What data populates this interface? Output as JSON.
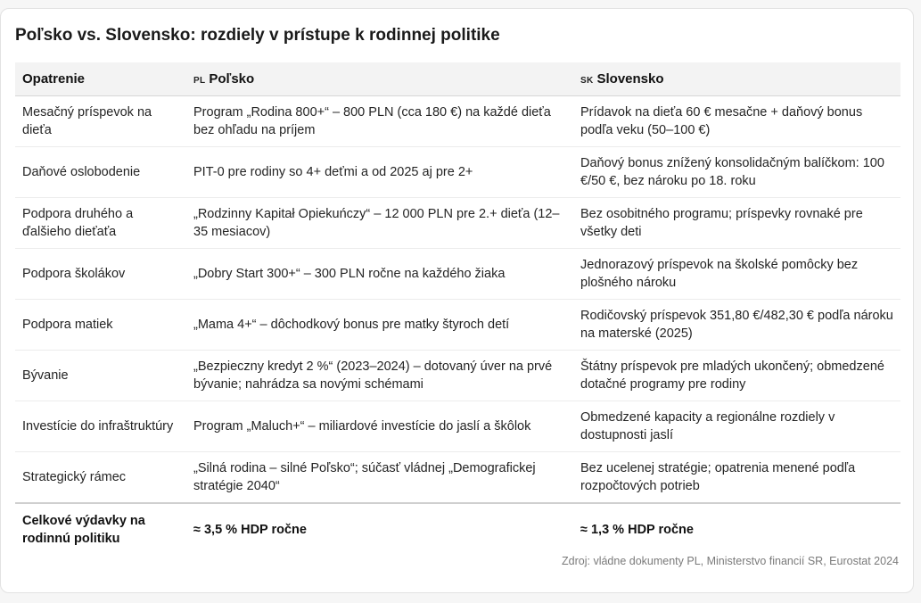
{
  "title": "Poľsko vs. Slovensko: rozdiely v prístupe k rodinnej politike",
  "header": {
    "col1": "Opatrenie",
    "col2_flag": "PL",
    "col2": "Poľsko",
    "col3_flag": "SK",
    "col3": "Slovensko"
  },
  "rows": [
    {
      "measure": "Mesačný príspevok na dieťa",
      "pl": "Program „Rodina 800+“ – 800 PLN (cca 180 €) na každé dieťa bez ohľadu na príjem",
      "sk": "Prídavok na dieťa 60 € mesačne + daňový bonus podľa veku (50–100 €)"
    },
    {
      "measure": "Daňové oslobodenie",
      "pl": "PIT-0 pre rodiny so 4+ deťmi a od 2025 aj pre 2+",
      "sk": "Daňový bonus znížený konsolidačným balíčkom: 100 €/50 €, bez nároku po 18. roku"
    },
    {
      "measure": "Podpora druhého a ďalšieho dieťaťa",
      "pl": "„Rodzinny Kapitał Opiekuńczy“ – 12 000 PLN pre 2.+ dieťa (12–35 mesiacov)",
      "sk": "Bez osobitného programu; príspevky rovnaké pre všetky deti"
    },
    {
      "measure": "Podpora školákov",
      "pl": "„Dobry Start 300+“ – 300 PLN ročne na každého žiaka",
      "sk": "Jednorazový príspevok na školské pomôcky bez plošného nároku"
    },
    {
      "measure": "Podpora matiek",
      "pl": "„Mama 4+“ – dôchodkový bonus pre matky štyroch detí",
      "sk": "Rodičovský príspevok 351,80 €/482,30 € podľa nároku na materské (2025)"
    },
    {
      "measure": "Bývanie",
      "pl": "„Bezpieczny kredyt 2 %“ (2023–2024) – dotovaný úver na prvé bývanie; nahrádza sa novými schémami",
      "sk": "Štátny príspevok pre mladých ukončený; obmedzené dotačné programy pre rodiny"
    },
    {
      "measure": "Investície do infraštruktúry",
      "pl": "Program „Maluch+“ – miliardové investície do jaslí a škôlok",
      "sk": "Obmedzené kapacity a regionálne rozdiely v dostupnosti jaslí"
    },
    {
      "measure": "Strategický rámec",
      "pl": "„Silná rodina – silné Poľsko“; súčasť vládnej „Demografickej stratégie 2040“",
      "sk": "Bez ucelenej stratégie; opatrenia menené podľa rozpočtových potrieb"
    }
  ],
  "footer": {
    "measure": "Celkové výdavky na rodinnú politiku",
    "pl": "≈ 3,5 % HDP ročne",
    "sk": "≈ 1,3 % HDP ročne"
  },
  "source": "Zdroj: vládne dokumenty PL, Ministerstvo financií SR, Eurostat 2024"
}
